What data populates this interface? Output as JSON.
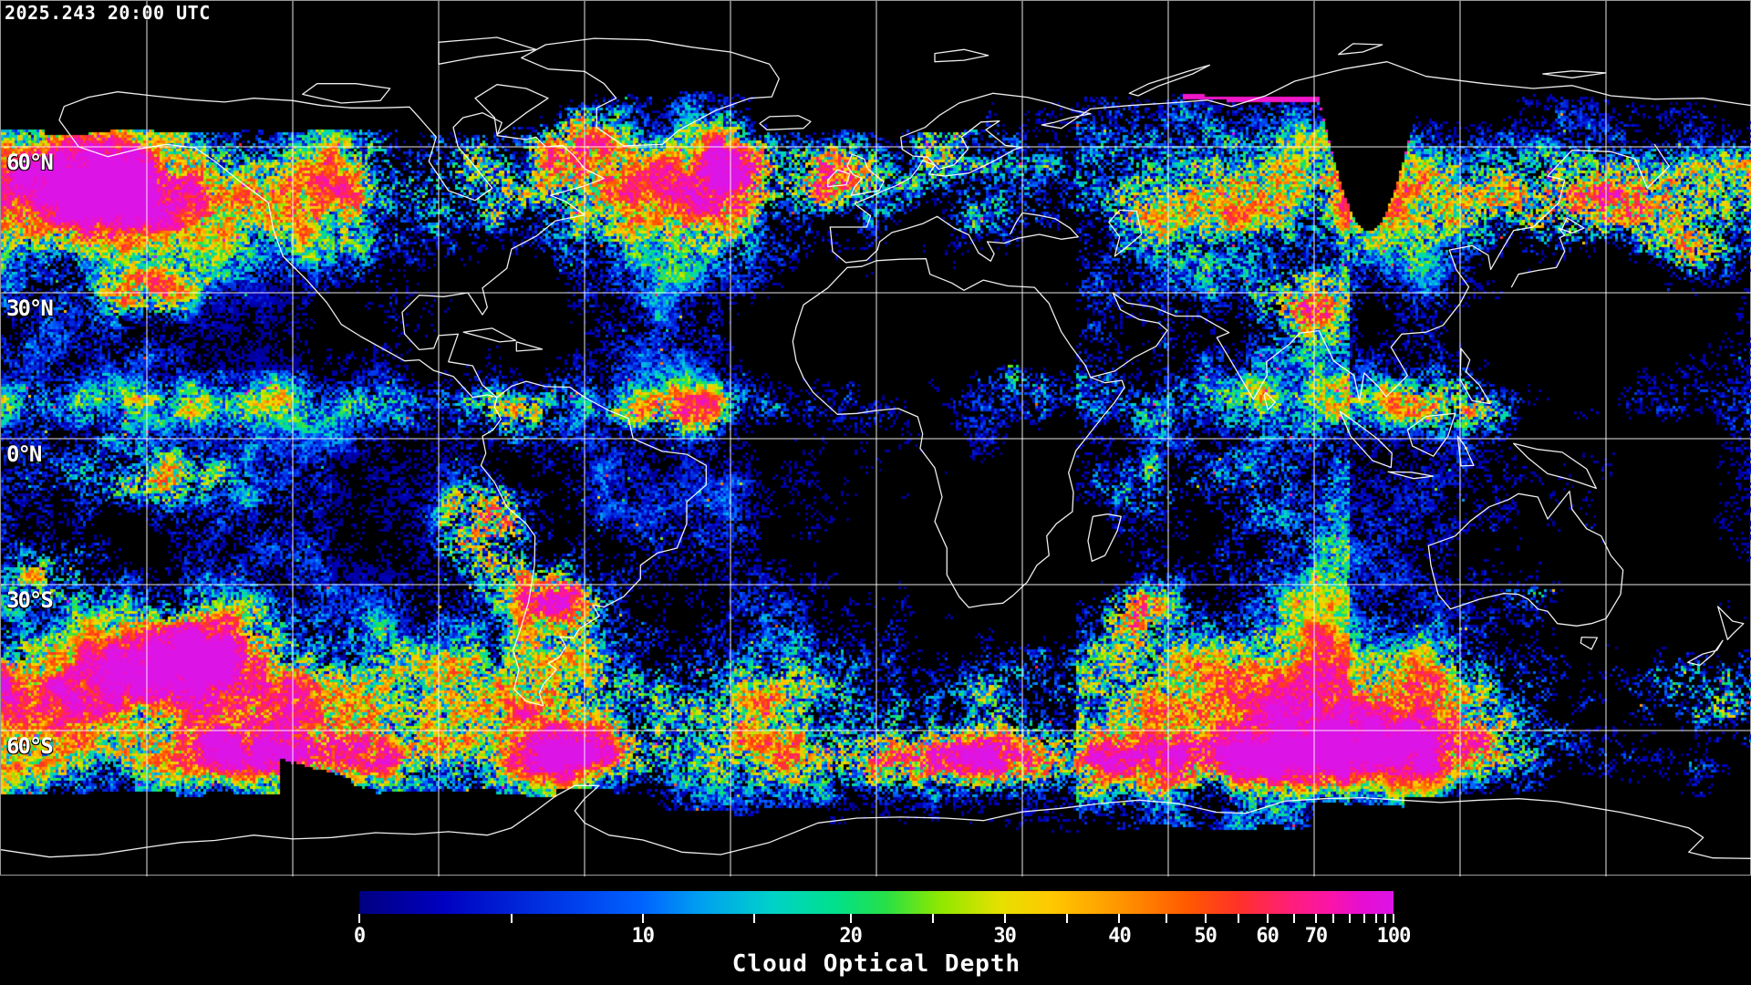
{
  "timestamp": "2025.243 20:00 UTC",
  "map": {
    "latitude_labels": [
      {
        "text": "60°N",
        "lat": 60
      },
      {
        "text": "30°N",
        "lat": 30
      },
      {
        "text": "0°N",
        "lat": 0
      },
      {
        "text": "30°S",
        "lat": -30
      },
      {
        "text": "60°S",
        "lat": -60
      }
    ],
    "grid": {
      "lon_step_deg": 30,
      "lat_step_deg": 30,
      "line_color": "#ffffff"
    },
    "coastline_color": "#ffffff",
    "background_color": "#000000"
  },
  "colorbar": {
    "title": "Cloud Optical Depth",
    "min": 0,
    "max": 100,
    "major_ticks": [
      {
        "value": 0,
        "label": "0"
      },
      {
        "value": 10,
        "label": "10"
      },
      {
        "value": 20,
        "label": "20"
      },
      {
        "value": 30,
        "label": "30"
      },
      {
        "value": 40,
        "label": "40"
      },
      {
        "value": 50,
        "label": "50"
      },
      {
        "value": 60,
        "label": "60"
      },
      {
        "value": 70,
        "label": "70"
      },
      {
        "value": 100,
        "label": "100"
      }
    ],
    "minor_tick_values": [
      5,
      15,
      25,
      35,
      45,
      55,
      65,
      75,
      80,
      85,
      90,
      95
    ],
    "value_fractions": [
      [
        0,
        0
      ],
      [
        5,
        0.147
      ],
      [
        10,
        0.274
      ],
      [
        15,
        0.382
      ],
      [
        20,
        0.475
      ],
      [
        25,
        0.555
      ],
      [
        30,
        0.624
      ],
      [
        35,
        0.684
      ],
      [
        40,
        0.735
      ],
      [
        45,
        0.78
      ],
      [
        50,
        0.818
      ],
      [
        55,
        0.85
      ],
      [
        60,
        0.878
      ],
      [
        65,
        0.904
      ],
      [
        70,
        0.925
      ],
      [
        75,
        0.942
      ],
      [
        80,
        0.958
      ],
      [
        85,
        0.972
      ],
      [
        90,
        0.983
      ],
      [
        95,
        0.992
      ],
      [
        100,
        1
      ]
    ],
    "gradient_stops": [
      [
        0,
        "#000080"
      ],
      [
        0.08,
        "#0000c0"
      ],
      [
        0.15,
        "#0023d8"
      ],
      [
        0.22,
        "#0046f0"
      ],
      [
        0.274,
        "#0064ff"
      ],
      [
        0.33,
        "#00a0f0"
      ],
      [
        0.4,
        "#00d2c8"
      ],
      [
        0.46,
        "#00e08c"
      ],
      [
        0.51,
        "#28e046"
      ],
      [
        0.56,
        "#8ce800"
      ],
      [
        0.62,
        "#e6e000"
      ],
      [
        0.67,
        "#ffc800"
      ],
      [
        0.735,
        "#ff9600"
      ],
      [
        0.8,
        "#ff5a00"
      ],
      [
        0.85,
        "#ff3228"
      ],
      [
        0.9,
        "#ff1e78"
      ],
      [
        0.94,
        "#fa14aa"
      ],
      [
        0.97,
        "#e60ed2"
      ],
      [
        1,
        "#dc14e6"
      ]
    ],
    "swath_edge_color": "#f018c8"
  }
}
